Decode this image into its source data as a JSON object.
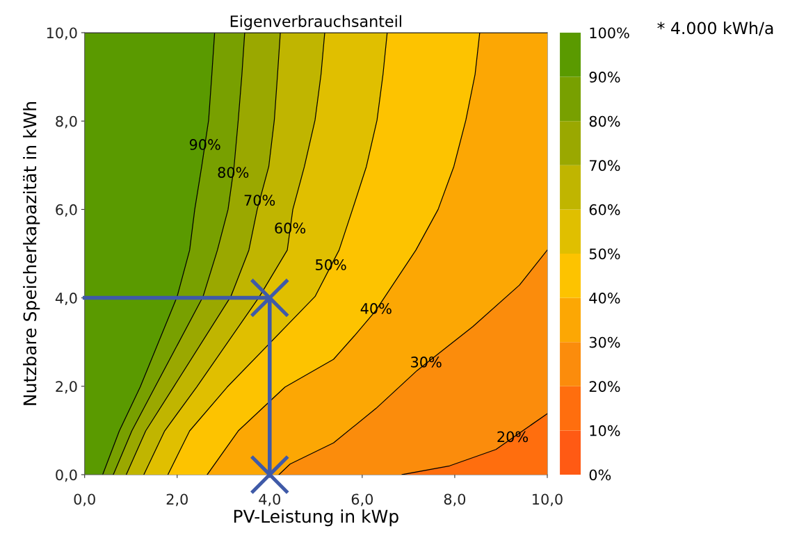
{
  "chart_data": {
    "type": "area",
    "title": "Eigenverbrauchsanteil",
    "xlabel": "PV-Leistung in kWp",
    "ylabel": "Nutzbare Speicherkapazität in kWh",
    "xlim": [
      0,
      10
    ],
    "ylim": [
      0,
      10
    ],
    "xticks": [
      {
        "value": 0,
        "label": "0,0"
      },
      {
        "value": 2,
        "label": "2,0"
      },
      {
        "value": 4,
        "label": "4,0"
      },
      {
        "value": 6,
        "label": "6,0"
      },
      {
        "value": 8,
        "label": "8,0"
      },
      {
        "value": 10,
        "label": "10,0"
      }
    ],
    "yticks": [
      {
        "value": 0,
        "label": "0,0"
      },
      {
        "value": 2,
        "label": "2,0"
      },
      {
        "value": 4,
        "label": "4,0"
      },
      {
        "value": 6,
        "label": "6,0"
      },
      {
        "value": 8,
        "label": "8,0"
      },
      {
        "value": 10,
        "label": "10,0"
      }
    ],
    "series": [
      {
        "color": "#5a9a00",
        "x": [
          0,
          10
        ],
        "values": [
          10,
          10
        ]
      },
      {
        "color": "#78a000",
        "x": [
          0.39,
          0.75,
          1.2,
          2.0,
          2.27,
          2.38,
          2.53,
          2.68,
          2.75,
          2.81,
          10
        ],
        "values": [
          0,
          0.99,
          1.98,
          4.03,
          5.08,
          6.0,
          6.97,
          8.02,
          9.06,
          10,
          10
        ]
      },
      {
        "color": "#9aa800",
        "x": [
          0.62,
          1.02,
          1.52,
          2.56,
          2.87,
          3.1,
          3.23,
          3.32,
          3.4,
          3.46,
          10
        ],
        "values": [
          0,
          0.99,
          1.98,
          4.03,
          5.08,
          6.0,
          6.97,
          8.02,
          9.06,
          10,
          10
        ]
      },
      {
        "color": "#c0b500",
        "x": [
          0.9,
          1.32,
          1.92,
          3.16,
          3.55,
          3.73,
          3.98,
          4.1,
          4.17,
          4.23,
          10
        ],
        "values": [
          0,
          0.99,
          1.98,
          4.03,
          5.08,
          6.0,
          6.97,
          8.02,
          9.06,
          10,
          10
        ]
      },
      {
        "color": "#e0bf00",
        "x": [
          1.28,
          1.73,
          2.42,
          3.78,
          4.38,
          4.5,
          4.75,
          4.98,
          5.11,
          5.19,
          10
        ],
        "values": [
          0,
          0.99,
          1.98,
          4.03,
          5.08,
          6.0,
          6.97,
          8.02,
          9.06,
          10,
          10
        ]
      },
      {
        "color": "#fdc300",
        "x": [
          1.8,
          2.27,
          3.08,
          4.98,
          5.5,
          5.79,
          6.09,
          6.32,
          6.45,
          6.54,
          10
        ],
        "values": [
          0,
          0.99,
          1.98,
          4.03,
          5.08,
          6.0,
          6.97,
          8.02,
          9.06,
          10,
          10
        ]
      },
      {
        "color": "#fca704",
        "x": [
          2.65,
          3.32,
          4.33,
          5.38,
          5.83,
          6.29,
          7.16,
          7.64,
          7.98,
          8.24,
          8.44,
          8.54,
          10
        ],
        "values": [
          0,
          0.99,
          1.98,
          2.61,
          3.14,
          3.71,
          5.08,
          6.0,
          6.97,
          8.02,
          9.06,
          10,
          10
        ]
      },
      {
        "color": "#fb8c0c",
        "x": [
          4.2,
          4.44,
          5.38,
          6.3,
          7.19,
          8.39,
          9.4,
          10
        ],
        "values": [
          0,
          0.24,
          0.72,
          1.5,
          2.36,
          3.35,
          4.29,
          5.08
        ]
      },
      {
        "color": "#ff6e0e",
        "x": [
          6.86,
          7.89,
          8.89,
          10
        ],
        "values": [
          0,
          0.2,
          0.57,
          1.38
        ]
      },
      {
        "type": "line",
        "color": "#3f5aa8",
        "marker": "none",
        "x": [
          0,
          4,
          4
        ],
        "values": [
          4,
          4,
          0
        ]
      },
      {
        "type": "scatter",
        "color": "#3f5aa8",
        "marker": "cross",
        "x": [
          4,
          4
        ],
        "values": [
          4,
          0
        ]
      }
    ],
    "annotations": [
      {
        "text": "90%",
        "x": 2.6,
        "y": 7.44
      },
      {
        "text": "80%",
        "x": 3.21,
        "y": 6.81
      },
      {
        "text": "70%",
        "x": 3.78,
        "y": 6.18
      },
      {
        "text": "60%",
        "x": 4.44,
        "y": 5.55
      },
      {
        "text": "50%",
        "x": 5.32,
        "y": 4.72
      },
      {
        "text": "40%",
        "x": 6.3,
        "y": 3.73
      },
      {
        "text": "30%",
        "x": 7.38,
        "y": 2.52
      },
      {
        "text": "20%",
        "x": 9.25,
        "y": 0.83
      },
      "* 4.000 kWh/a"
    ],
    "clim": [
      0,
      100
    ],
    "cticks": [
      {
        "value": 0,
        "label": "0%"
      },
      {
        "value": 10,
        "label": "10%"
      },
      {
        "value": 20,
        "label": "20%"
      },
      {
        "value": 30,
        "label": "30%"
      },
      {
        "value": 40,
        "label": "40%"
      },
      {
        "value": 50,
        "label": "50%"
      },
      {
        "value": 60,
        "label": "60%"
      },
      {
        "value": 70,
        "label": "70%"
      },
      {
        "value": 80,
        "label": "80%"
      },
      {
        "value": 90,
        "label": "90%"
      },
      {
        "value": 100,
        "label": "100%"
      }
    ],
    "colors": [
      "#ff5a14",
      "#ff6e0e",
      "#fb8c0c",
      "#fca704",
      "#fdc300",
      "#e0bf00",
      "#c0b500",
      "#9aa800",
      "#78a000",
      "#5a9a00"
    ]
  }
}
